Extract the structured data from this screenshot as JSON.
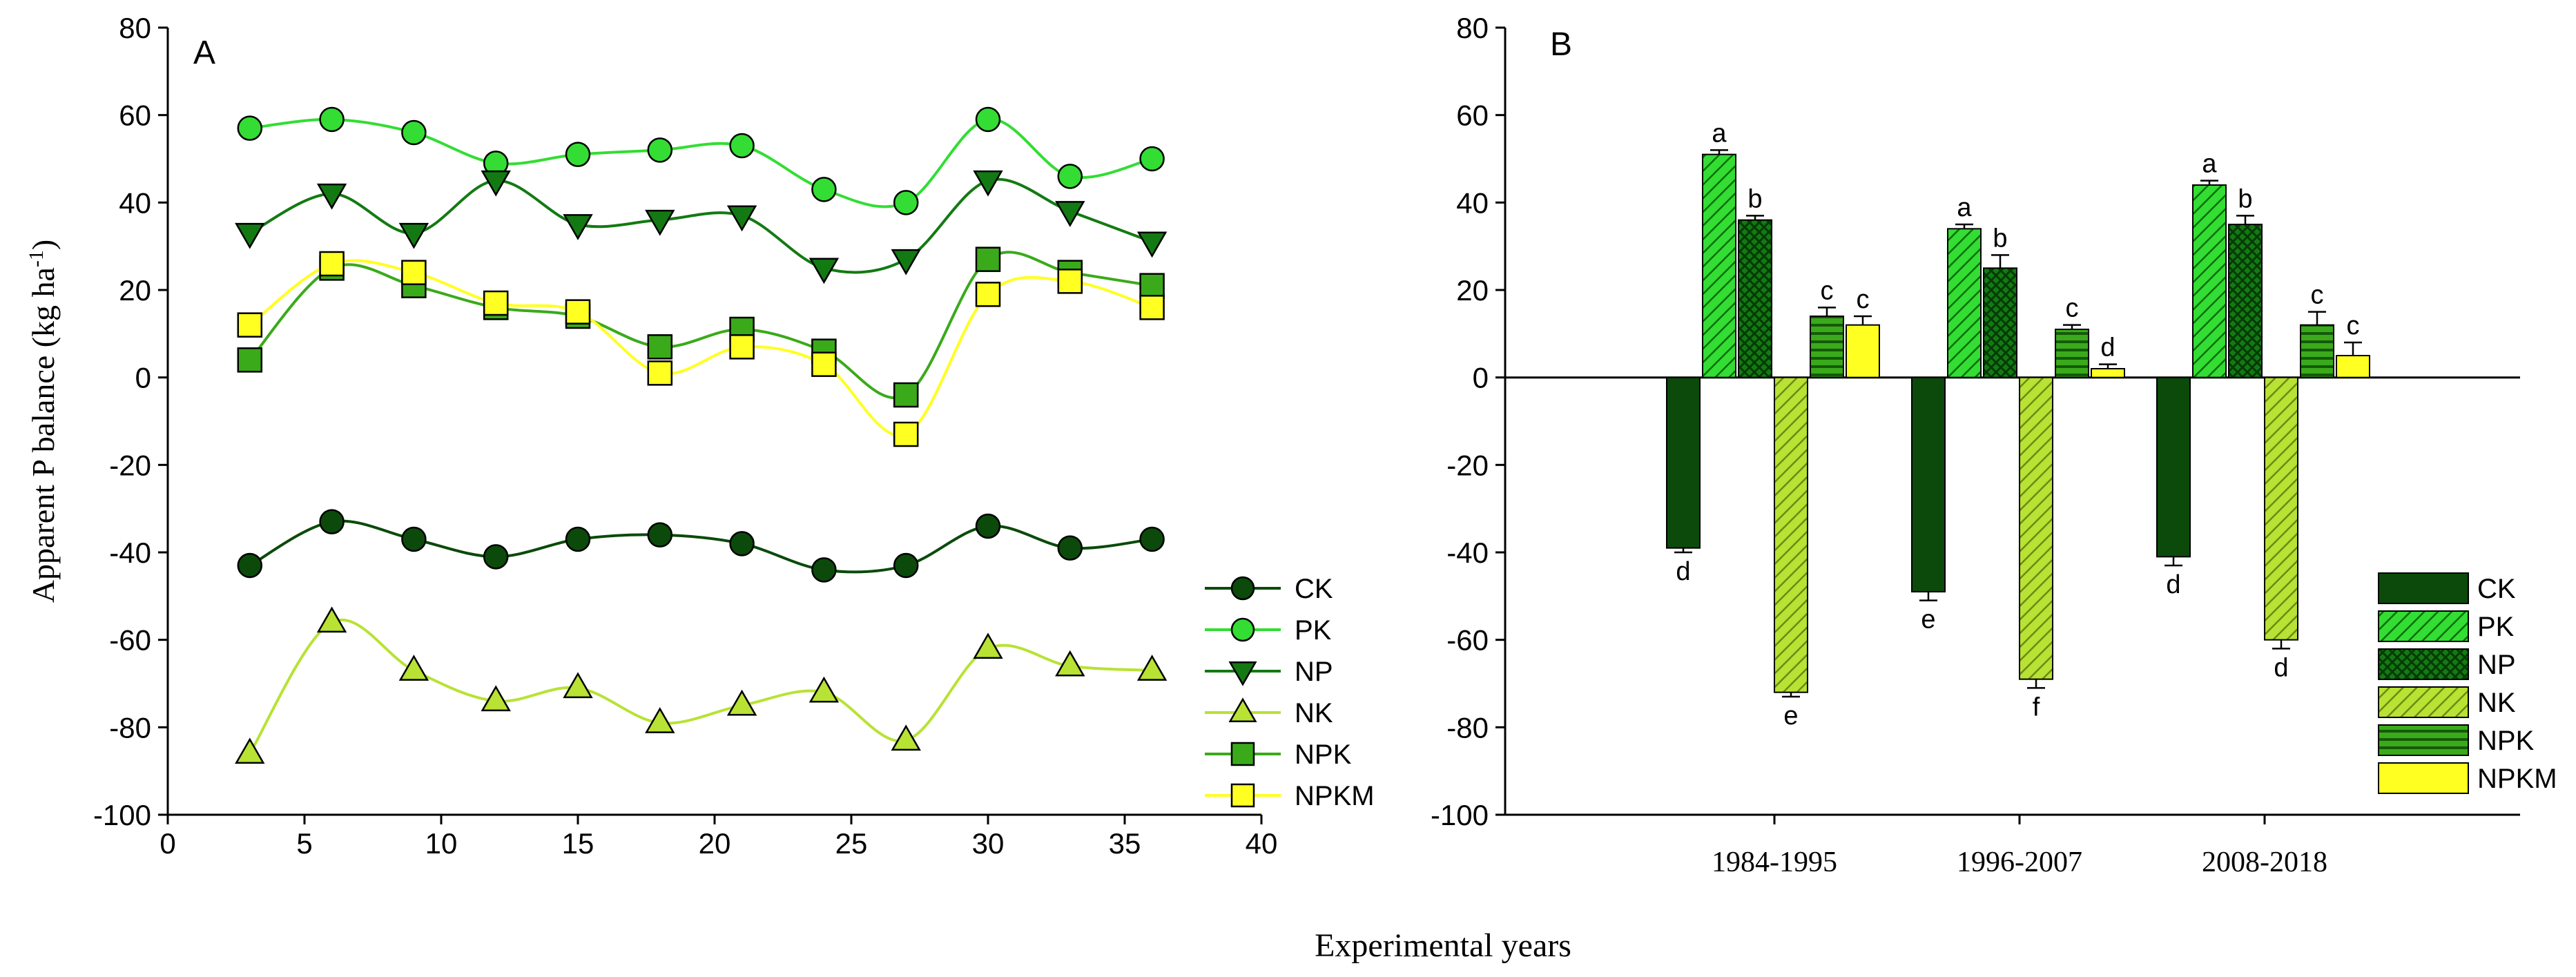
{
  "figure": {
    "xlabel": "Experimental years"
  },
  "colors": {
    "CK": "#0b4a0b",
    "PK": "#33dd33",
    "NP": "#137a13",
    "NK": "#b8e234",
    "NPK": "#3aaa1a",
    "NPKM": "#ffff22"
  },
  "chart_data": [
    {
      "type": "line",
      "panel": "A",
      "ylabel_main": "Apparent P balance (kg ha",
      "ylabel_exp": "-1",
      "ylabel_close": ")",
      "xlim": [
        0,
        40
      ],
      "ylim": [
        -100,
        80
      ],
      "xticks": [
        0,
        5,
        10,
        15,
        20,
        25,
        30,
        35,
        40
      ],
      "yticks": [
        -100,
        -80,
        -60,
        -40,
        -20,
        0,
        20,
        40,
        60,
        80
      ],
      "x": [
        3,
        6,
        9,
        12,
        15,
        18,
        21,
        24,
        27,
        30,
        33,
        36
      ],
      "legend_position": "lower-right",
      "series": [
        {
          "name": "CK",
          "marker": "circle",
          "values": [
            -43,
            -33,
            -37,
            -41,
            -37,
            -36,
            -38,
            -44,
            -43,
            -34,
            -39,
            -37
          ]
        },
        {
          "name": "PK",
          "marker": "circle",
          "values": [
            57,
            59,
            56,
            49,
            51,
            52,
            53,
            43,
            40,
            59,
            46,
            50
          ]
        },
        {
          "name": "NP",
          "marker": "triangle-down",
          "values": [
            33,
            42,
            33,
            45,
            35,
            36,
            37,
            25,
            27,
            45,
            38,
            31
          ]
        },
        {
          "name": "NK",
          "marker": "triangle-up",
          "values": [
            -86,
            -56,
            -67,
            -74,
            -71,
            -79,
            -75,
            -72,
            -83,
            -62,
            -66,
            -67
          ]
        },
        {
          "name": "NPK",
          "marker": "square",
          "values": [
            4,
            25,
            21,
            16,
            14,
            7,
            11,
            6,
            -4,
            27,
            24,
            21
          ]
        },
        {
          "name": "NPKM",
          "marker": "square",
          "values": [
            12,
            26,
            24,
            17,
            15,
            1,
            7,
            3,
            -13,
            19,
            22,
            16
          ]
        }
      ]
    },
    {
      "type": "bar",
      "panel": "B",
      "ylim": [
        -100,
        80
      ],
      "yticks": [
        -100,
        -80,
        -60,
        -40,
        -20,
        0,
        20,
        40,
        60,
        80
      ],
      "categories": [
        "1984-1995",
        "1996-2007",
        "2008-2018"
      ],
      "legend_position": "lower-right",
      "series": [
        {
          "name": "CK",
          "pattern": "solid",
          "values": [
            -39,
            -49,
            -41
          ],
          "errors": [
            1,
            2,
            2
          ],
          "letters": [
            "d",
            "e",
            "d"
          ]
        },
        {
          "name": "PK",
          "pattern": "diag",
          "values": [
            51,
            34,
            44
          ],
          "errors": [
            1,
            1,
            1
          ],
          "letters": [
            "a",
            "a",
            "a"
          ]
        },
        {
          "name": "NP",
          "pattern": "cross",
          "values": [
            36,
            25,
            35
          ],
          "errors": [
            1,
            3,
            2
          ],
          "letters": [
            "b",
            "b",
            "b"
          ]
        },
        {
          "name": "NK",
          "pattern": "diag",
          "values": [
            -72,
            -69,
            -60
          ],
          "errors": [
            1,
            2,
            2
          ],
          "letters": [
            "e",
            "f",
            "d"
          ]
        },
        {
          "name": "NPK",
          "pattern": "horiz",
          "values": [
            14,
            11,
            12
          ],
          "errors": [
            2,
            1,
            3
          ],
          "letters": [
            "c",
            "c",
            "c"
          ]
        },
        {
          "name": "NPKM",
          "pattern": "solid",
          "values": [
            12,
            2,
            5
          ],
          "errors": [
            2,
            1,
            3
          ],
          "letters": [
            "c",
            "d",
            "c"
          ]
        }
      ]
    }
  ]
}
